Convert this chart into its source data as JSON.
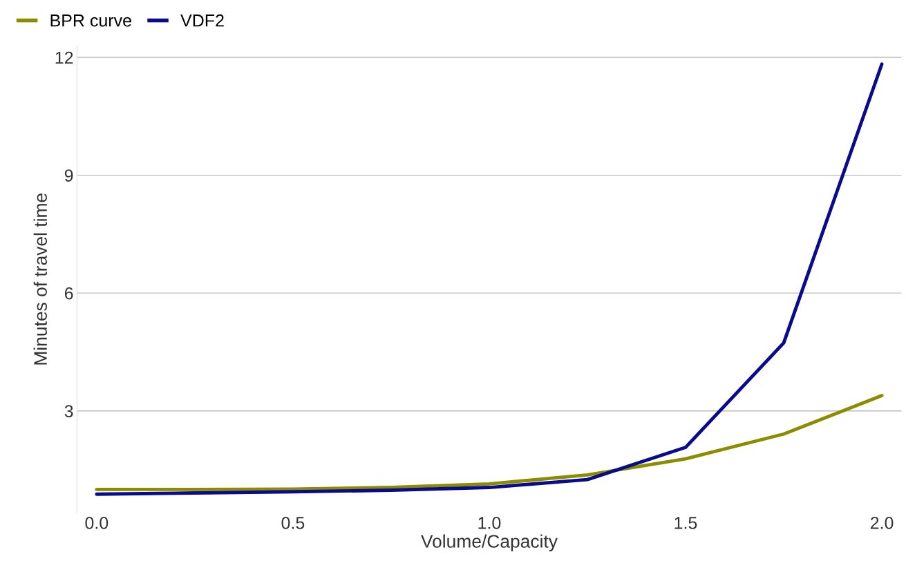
{
  "chart_data": {
    "type": "line",
    "xlabel": "Volume/Capacity",
    "ylabel": "Minutes of travel time",
    "x": [
      0,
      0.25,
      0.5,
      0.75,
      1.0,
      1.25,
      1.5,
      1.75,
      2.0
    ],
    "series": [
      {
        "name": "BPR curve",
        "color": "#8c8c00",
        "values": [
          1.0,
          1.0,
          1.01,
          1.05,
          1.14,
          1.37,
          1.78,
          2.41,
          3.39
        ]
      },
      {
        "name": "VDF2",
        "color": "#0a0a8c",
        "values": [
          0.88,
          0.91,
          0.94,
          0.98,
          1.05,
          1.25,
          2.07,
          4.73,
          11.83
        ]
      }
    ],
    "xlim": [
      -0.05,
      2.05
    ],
    "xticks": [
      {
        "value": 0,
        "label": "0.0"
      },
      0.5,
      {
        "value": 1,
        "label": "1.0"
      },
      1.5,
      {
        "value": 2,
        "label": "2.0"
      }
    ],
    "ylim": [
      0.4,
      12.3
    ],
    "yticks": [
      3,
      6,
      9,
      12
    ],
    "grid": "y",
    "legend": "top left",
    "marker": "none",
    "line_style": "solid"
  }
}
